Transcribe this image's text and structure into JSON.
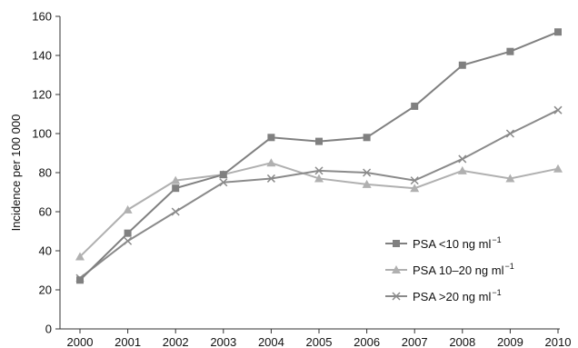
{
  "chart_data": {
    "type": "line",
    "x": [
      "2000",
      "2001",
      "2002",
      "2003",
      "2004",
      "2005",
      "2006",
      "2007",
      "2008",
      "2009",
      "2010"
    ],
    "ylabel": "Incidence per 100 000",
    "xlabel": "",
    "ylim": [
      0,
      160
    ],
    "yticks": [
      "0",
      "20",
      "40",
      "60",
      "80",
      "100",
      "120",
      "140",
      "160"
    ],
    "grid": false,
    "legend_position": "bottom-right",
    "series": [
      {
        "name": "PSA <10 ng ml",
        "sup": "−1",
        "marker": "square",
        "color": "#808080",
        "values": [
          25,
          49,
          72,
          79,
          98,
          96,
          98,
          114,
          135,
          142,
          152
        ]
      },
      {
        "name": "PSA 10–20 ng ml",
        "sup": "−1",
        "marker": "triangle",
        "color": "#b0b0b0",
        "values": [
          37,
          61,
          76,
          79,
          85,
          77,
          74,
          72,
          81,
          77,
          82
        ]
      },
      {
        "name": "PSA >20 ng ml",
        "sup": "−1",
        "marker": "cross",
        "color": "#8a8a8a",
        "values": [
          26,
          45,
          60,
          75,
          77,
          81,
          80,
          76,
          87,
          100,
          112
        ]
      }
    ]
  }
}
